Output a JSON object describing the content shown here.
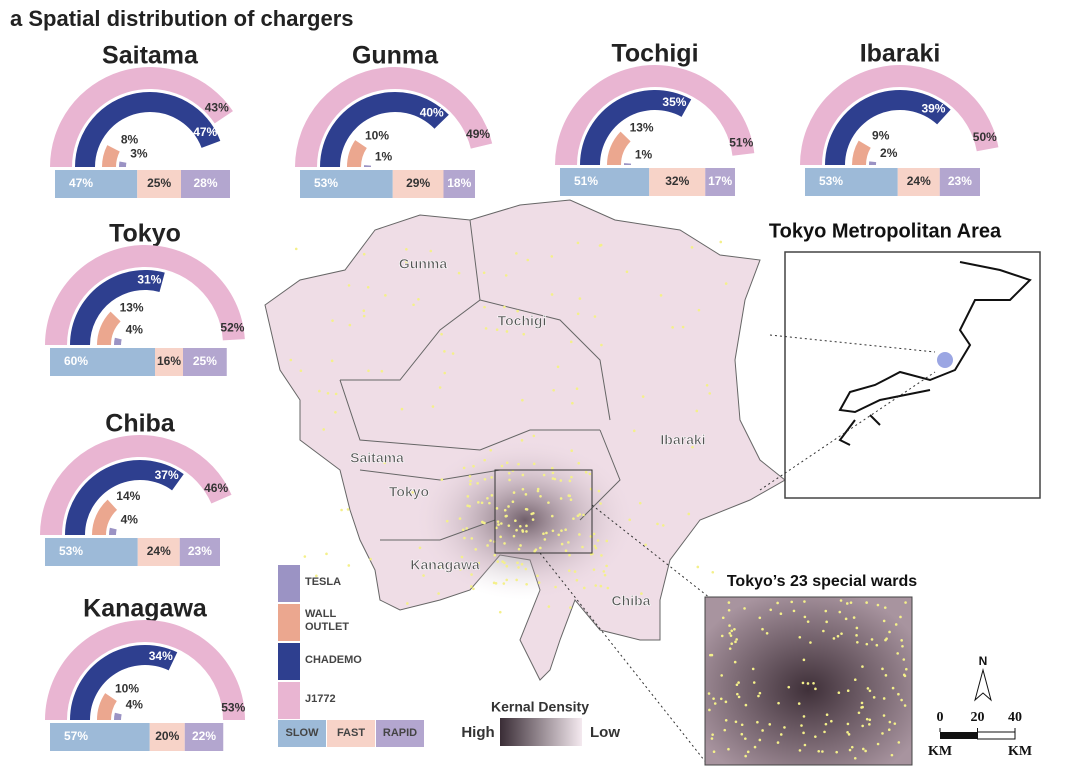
{
  "title": "a Spatial distribution of chargers",
  "connectors": [
    {
      "name": "TESLA",
      "color": "#9b93c4"
    },
    {
      "name": "WALL OUTLET",
      "color": "#eba78f"
    },
    {
      "name": "CHADEMO",
      "color": "#2e3f8f"
    },
    {
      "name": "J1772",
      "color": "#e9b5d2"
    }
  ],
  "speeds": [
    {
      "name": "SLOW",
      "color": "#9dbad8"
    },
    {
      "name": "FAST",
      "color": "#f7d3c8"
    },
    {
      "name": "RAPID",
      "color": "#b3a6cf"
    }
  ],
  "chart_data": [
    {
      "type": "radial_bar",
      "title": "Saitama",
      "ylim": [
        0,
        53
      ],
      "values": [
        3,
        8,
        47,
        43
      ],
      "value_labels": [
        "3%",
        "8%",
        "47%",
        "43%"
      ],
      "speed_values": [
        47,
        25,
        28
      ],
      "speed_labels": [
        "47%",
        "25%",
        "28%"
      ]
    },
    {
      "type": "radial_bar",
      "title": "Gunma",
      "ylim": [
        0,
        53
      ],
      "values": [
        1,
        10,
        40,
        49
      ],
      "value_labels": [
        "1%",
        "10%",
        "40%",
        "49%"
      ],
      "speed_values": [
        53,
        29,
        18
      ],
      "speed_labels": [
        "53%",
        "29%",
        "18%"
      ]
    },
    {
      "type": "radial_bar",
      "title": "Tochigi",
      "ylim": [
        0,
        53
      ],
      "values": [
        1,
        13,
        35,
        51
      ],
      "value_labels": [
        "1%",
        "13%",
        "35%",
        "51%"
      ],
      "speed_values": [
        51,
        32,
        17
      ],
      "speed_labels": [
        "51%",
        "32%",
        "17%"
      ]
    },
    {
      "type": "radial_bar",
      "title": "Ibaraki",
      "ylim": [
        0,
        53
      ],
      "values": [
        2,
        9,
        39,
        50
      ],
      "value_labels": [
        "2%",
        "9%",
        "39%",
        "50%"
      ],
      "speed_values": [
        53,
        24,
        23
      ],
      "speed_labels": [
        "53%",
        "24%",
        "23%"
      ]
    },
    {
      "type": "radial_bar",
      "title": "Tokyo",
      "ylim": [
        0,
        53
      ],
      "values": [
        4,
        13,
        31,
        52
      ],
      "value_labels": [
        "4%",
        "13%",
        "31%",
        "52%"
      ],
      "speed_values": [
        60,
        16,
        25
      ],
      "speed_labels": [
        "60%",
        "16%",
        "25%"
      ]
    },
    {
      "type": "radial_bar",
      "title": "Chiba",
      "ylim": [
        0,
        53
      ],
      "values": [
        4,
        14,
        37,
        46
      ],
      "value_labels": [
        "4%",
        "14%",
        "37%",
        "46%"
      ],
      "speed_values": [
        53,
        24,
        23
      ],
      "speed_labels": [
        "53%",
        "24%",
        "23%"
      ]
    },
    {
      "type": "radial_bar",
      "title": "Kanagawa",
      "ylim": [
        0,
        53
      ],
      "values": [
        4,
        10,
        34,
        53
      ],
      "value_labels": [
        "4%",
        "10%",
        "34%",
        "53%"
      ],
      "speed_values": [
        57,
        20,
        22
      ],
      "speed_labels": [
        "57%",
        "20%",
        "22%"
      ]
    }
  ],
  "map": {
    "labels": [
      "Gunma",
      "Tochigi",
      "Ibaraki",
      "Saitama",
      "Tokyo",
      "Kanagawa",
      "Chiba"
    ],
    "inset_title": "Tokyo Metropolitan Area",
    "wards_title": "Tokyo’s 23 special wards",
    "density_title": "Kernal Density",
    "density_high": "High",
    "density_low": "Low",
    "north": "N",
    "scale_ticks": [
      0,
      20,
      40
    ],
    "scale_units": [
      "KM",
      "KM"
    ]
  }
}
